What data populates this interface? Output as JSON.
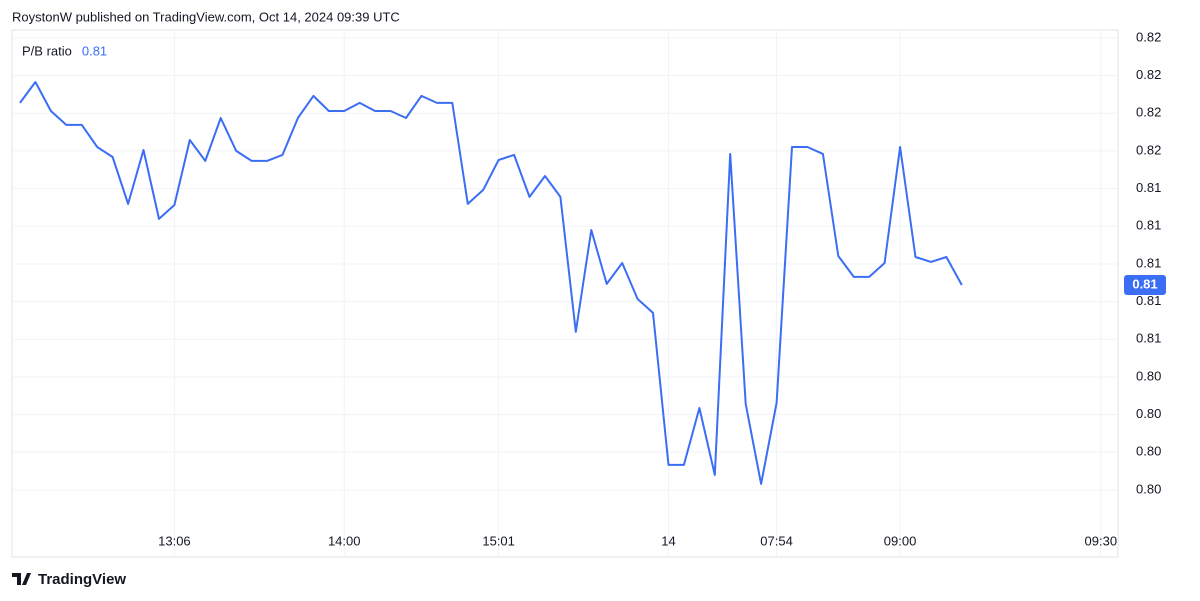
{
  "header": "RoystonW published on TradingView.com, Oct 14, 2024 09:39 UTC",
  "footer": "TradingView",
  "chart_data": {
    "type": "line",
    "categories": [
      null,
      null,
      null,
      null,
      null,
      null,
      null,
      null,
      null,
      null,
      "13:06",
      null,
      null,
      null,
      null,
      null,
      null,
      null,
      null,
      null,
      null,
      "14:00",
      null,
      null,
      null,
      null,
      null,
      null,
      null,
      null,
      null,
      "15:01",
      null,
      null,
      null,
      null,
      null,
      null,
      null,
      null,
      null,
      null,
      "14",
      null,
      null,
      null,
      null,
      null,
      null,
      "07:54",
      null,
      null,
      null,
      null,
      null,
      null,
      null,
      "09:00",
      null,
      null,
      null,
      null,
      null,
      null,
      null,
      null,
      null,
      null,
      null,
      null,
      "09:30"
    ],
    "series": [
      {
        "name": "P/B ratio",
        "color": "#3b6ef5",
        "last_value_label": "0.81",
        "values": [
          0.81855,
          0.81966,
          0.81812,
          0.81738,
          0.81738,
          0.81621,
          0.81568,
          0.81319,
          0.81605,
          0.81239,
          0.81313,
          0.81658,
          0.81547,
          0.81775,
          0.816,
          0.81547,
          0.81547,
          0.81579,
          0.81775,
          0.81892,
          0.81812,
          0.81812,
          0.81855,
          0.81812,
          0.81812,
          0.81775,
          0.81892,
          0.81855,
          0.81855,
          0.81319,
          0.81393,
          0.81552,
          0.81579,
          0.81356,
          0.81467,
          0.81356,
          0.80639,
          0.8118,
          0.80894,
          0.81005,
          0.80814,
          0.8074,
          0.79933,
          0.79933,
          0.80235,
          0.7988,
          0.81584,
          0.80257,
          0.79832,
          0.80262,
          0.81621,
          0.81621,
          0.81584,
          0.81042,
          0.80931,
          0.80931,
          0.81005,
          0.81621,
          0.81037,
          0.81011,
          0.81037,
          0.80888,
          null,
          null,
          null,
          null,
          null,
          null,
          null,
          null,
          null
        ]
      }
    ],
    "ylim": [
      0.79614,
      0.82242
    ],
    "yticks": [
      {
        "value": 0.822,
        "label": "0.82"
      },
      {
        "value": 0.82,
        "label": "0.82"
      },
      {
        "value": 0.818,
        "label": "0.82"
      },
      {
        "value": 0.816,
        "label": "0.82"
      },
      {
        "value": 0.814,
        "label": "0.81"
      },
      {
        "value": 0.812,
        "label": "0.81"
      },
      {
        "value": 0.81,
        "label": "0.81"
      },
      {
        "value": 0.808,
        "label": "0.81"
      },
      {
        "value": 0.806,
        "label": "0.81"
      },
      {
        "value": 0.804,
        "label": "0.80"
      },
      {
        "value": 0.802,
        "label": "0.80"
      },
      {
        "value": 0.8,
        "label": "0.80"
      },
      {
        "value": 0.798,
        "label": "0.80"
      }
    ],
    "grid": true
  }
}
